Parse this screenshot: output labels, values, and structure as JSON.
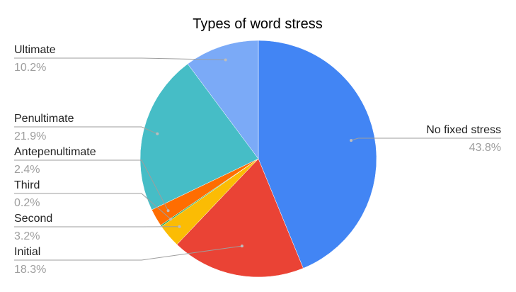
{
  "chart_data": {
    "type": "pie",
    "title": "Types of word stress",
    "slices": [
      {
        "label": "No fixed stress",
        "value": 43.8,
        "pct_label": "43.8%",
        "color": "#4285f4"
      },
      {
        "label": "Initial",
        "value": 18.3,
        "pct_label": "18.3%",
        "color": "#ea4335"
      },
      {
        "label": "Second",
        "value": 3.2,
        "pct_label": "3.2%",
        "color": "#fbbc04"
      },
      {
        "label": "Third",
        "value": 0.2,
        "pct_label": "0.2%",
        "color": "#34a853"
      },
      {
        "label": "Antepenultimate",
        "value": 2.4,
        "pct_label": "2.4%",
        "color": "#ff6d01"
      },
      {
        "label": "Penultimate",
        "value": 21.9,
        "pct_label": "21.9%",
        "color": "#46bdc6"
      },
      {
        "label": "Ultimate",
        "value": 10.2,
        "pct_label": "10.2%",
        "color": "#7baaf7"
      }
    ],
    "legend": "none"
  }
}
